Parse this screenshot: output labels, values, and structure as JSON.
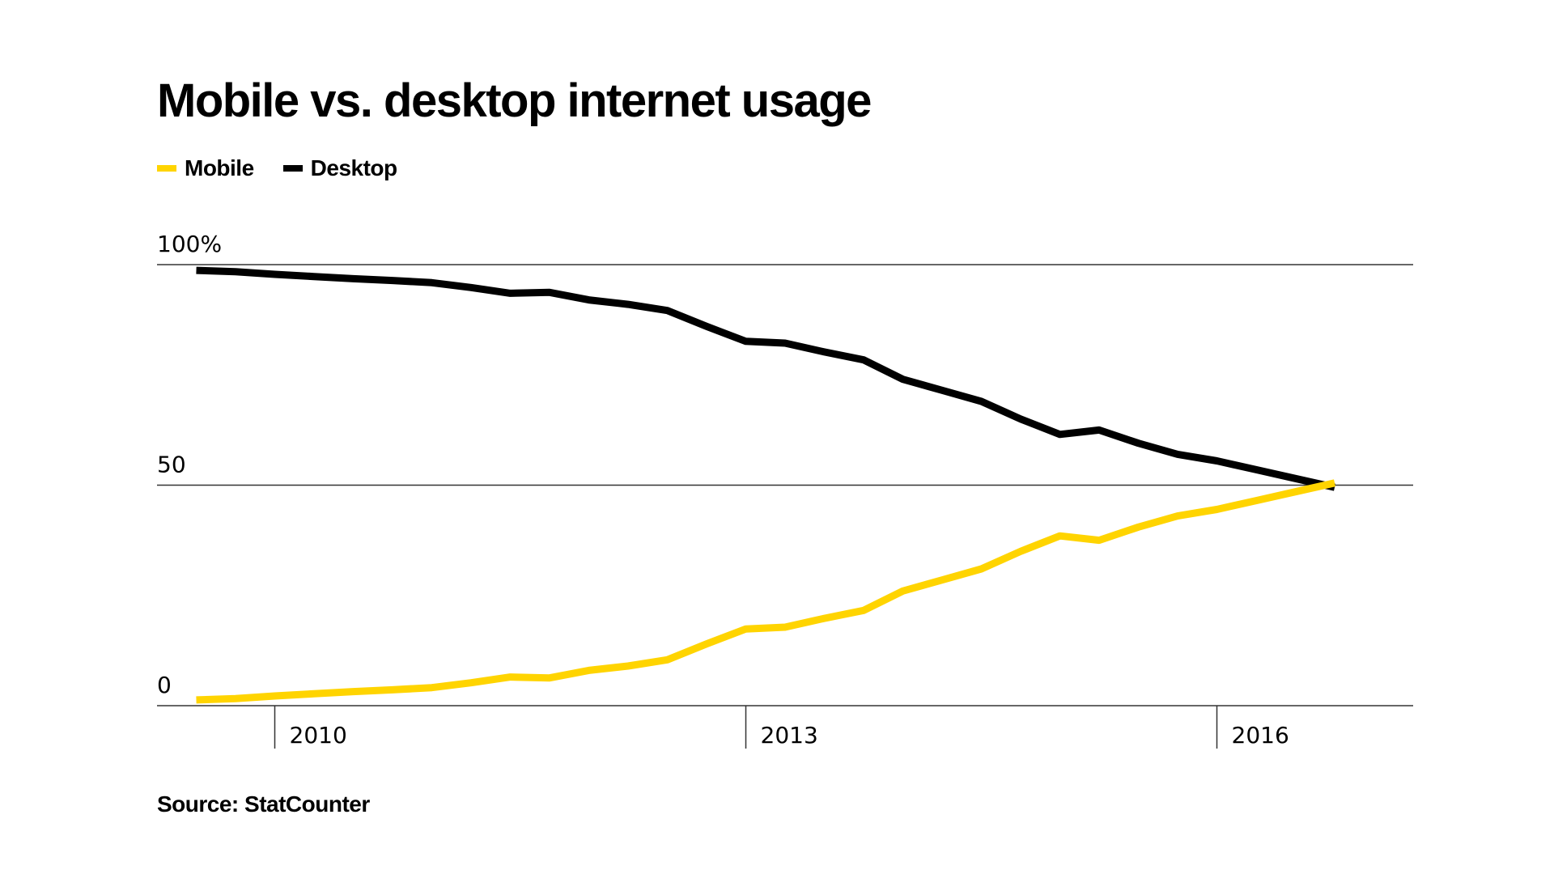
{
  "header": {
    "title": "Mobile vs. desktop internet usage"
  },
  "footer": {
    "source": "Source: StatCounter"
  },
  "chart_data": {
    "type": "line",
    "title": "Mobile vs. desktop internet usage",
    "xlabel": "",
    "ylabel": "",
    "ylim": [
      0,
      100
    ],
    "xlim": [
      2009.25,
      2017.25
    ],
    "grid": true,
    "legend_position": "top-left",
    "y_ticks": [
      {
        "value": 0,
        "label": "0"
      },
      {
        "value": 50,
        "label": "50"
      },
      {
        "value": 100,
        "label": "100%"
      }
    ],
    "x_ticks": [
      {
        "value": 2010,
        "label": "2010"
      },
      {
        "value": 2013,
        "label": "2013"
      },
      {
        "value": 2016,
        "label": "2016"
      }
    ],
    "x": [
      2009.5,
      2009.75,
      2010.0,
      2010.25,
      2010.5,
      2010.75,
      2011.0,
      2011.25,
      2011.5,
      2011.75,
      2012.0,
      2012.25,
      2012.5,
      2012.75,
      2013.0,
      2013.25,
      2013.5,
      2013.75,
      2014.0,
      2014.25,
      2014.5,
      2014.75,
      2015.0,
      2015.25,
      2015.5,
      2015.75,
      2016.0,
      2016.25,
      2016.5,
      2016.75
    ],
    "series": [
      {
        "name": "Mobile",
        "color": "#FFD400",
        "values": [
          1.3,
          1.6,
          2.2,
          2.7,
          3.2,
          3.6,
          4.1,
          5.2,
          6.5,
          6.3,
          8.0,
          9.0,
          10.4,
          14.0,
          17.4,
          17.8,
          19.8,
          21.6,
          26.0,
          28.5,
          31.0,
          35.0,
          38.5,
          37.5,
          40.5,
          43.0,
          44.5,
          46.5,
          48.5,
          50.5
        ]
      },
      {
        "name": "Desktop",
        "color": "#000000",
        "values": [
          98.7,
          98.4,
          97.8,
          97.3,
          96.8,
          96.4,
          95.9,
          94.8,
          93.5,
          93.7,
          92.0,
          91.0,
          89.6,
          86.0,
          82.6,
          82.2,
          80.2,
          78.4,
          74.0,
          71.5,
          69.0,
          65.0,
          61.5,
          62.5,
          59.5,
          57.0,
          55.5,
          53.5,
          51.5,
          49.5
        ]
      }
    ]
  }
}
